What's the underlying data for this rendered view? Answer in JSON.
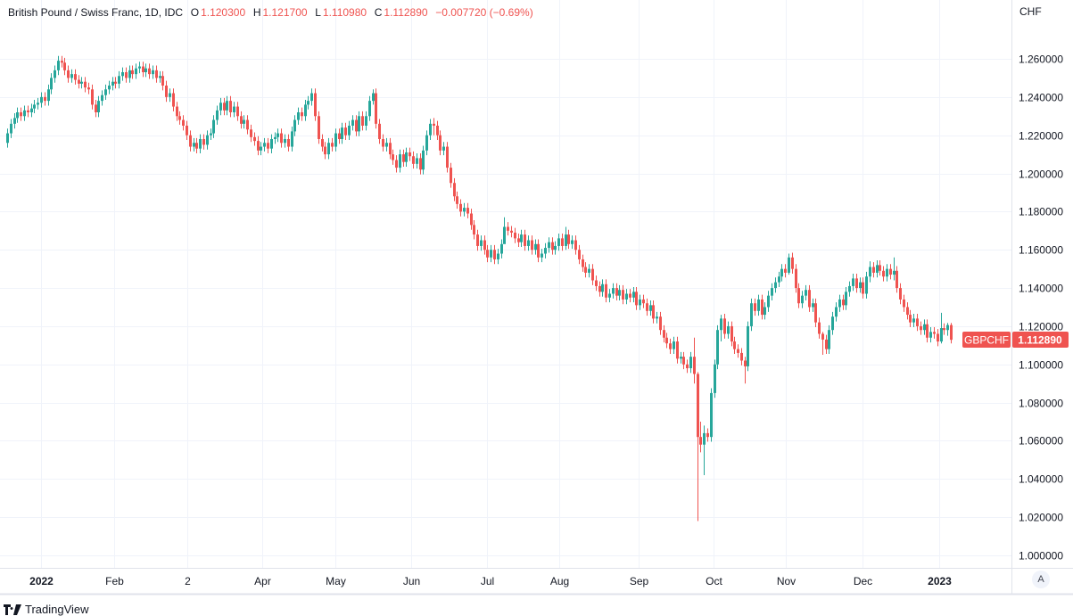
{
  "header": {
    "title": "British Pound / Swiss Franc, 1D, IDC",
    "o_label": "O",
    "o_value": "1.120300",
    "h_label": "H",
    "h_value": "1.121700",
    "l_label": "L",
    "l_value": "1.110980",
    "c_label": "C",
    "c_value": "1.112890",
    "change": "−0.007720 (−0.69%)"
  },
  "currency_label": "CHF",
  "auto_scale_button": "A",
  "logo_text": "TradingView",
  "colors": {
    "up": "#26a69a",
    "down": "#ef5350",
    "grid": "#f0f3fa",
    "axis_text": "#131722"
  },
  "chart_data": {
    "type": "candlestick",
    "symbol": "GBPCHF",
    "last_price_label": "1.112890",
    "ylim": [
      0.99,
      1.275
    ],
    "yticks": [
      "1.260000",
      "1.240000",
      "1.220000",
      "1.200000",
      "1.180000",
      "1.160000",
      "1.140000",
      "1.120000",
      "1.100000",
      "1.080000",
      "1.060000",
      "1.040000",
      "1.020000",
      "1.000000"
    ],
    "xticks": [
      "2022",
      "Feb",
      "2",
      "Apr",
      "May",
      "Jun",
      "Jul",
      "Aug",
      "Sep",
      "Oct",
      "Nov",
      "Dec",
      "2023"
    ],
    "first_open": 1.216,
    "closes_note": "daily closes; arrays are [close, high, low]",
    "closes": [
      1.221,
      1.226,
      1.229,
      1.232,
      1.23,
      1.233,
      1.232,
      1.234,
      1.236,
      1.237,
      1.24,
      1.238,
      1.244,
      1.25,
      1.254,
      1.259,
      1.258,
      1.254,
      1.25,
      1.252,
      1.249,
      1.247,
      1.248,
      1.245,
      1.244,
      1.236,
      1.232,
      1.238,
      1.241,
      1.244,
      1.246,
      1.248,
      1.247,
      1.251,
      1.253,
      1.25,
      1.254,
      1.252,
      1.255,
      1.256,
      1.253,
      1.255,
      1.252,
      1.254,
      1.25,
      1.251,
      1.246,
      1.24,
      1.242,
      1.235,
      1.23,
      1.228,
      1.225,
      1.22,
      1.214,
      1.216,
      1.213,
      1.218,
      1.215,
      1.22,
      1.221,
      1.228,
      1.233,
      1.237,
      1.233,
      1.238,
      1.232,
      1.235,
      1.23,
      1.226,
      1.228,
      1.223,
      1.219,
      1.217,
      1.212,
      1.214,
      1.216,
      1.213,
      1.218,
      1.219,
      1.221,
      1.216,
      1.218,
      1.214,
      1.222,
      1.228,
      1.232,
      1.23,
      1.236,
      1.238,
      1.242,
      1.23,
      1.218,
      1.214,
      1.21,
      1.216,
      1.214,
      1.221,
      1.218,
      1.224,
      1.22,
      1.225,
      1.228,
      1.222,
      1.23,
      1.225,
      1.23,
      1.238,
      [
        1.242,
        1.244,
        1.236
      ],
      1.226,
      1.218,
      1.214,
      1.216,
      1.21,
      1.207,
      1.203,
      1.21,
      1.206,
      1.211,
      1.209,
      1.205,
      1.208,
      1.202,
      1.212,
      1.22,
      1.226,
      [
        1.225,
        1.229,
        1.22
      ],
      1.22,
      1.212,
      1.214,
      1.203,
      1.195,
      1.188,
      1.184,
      1.18,
      1.182,
      1.179,
      1.173,
      1.168,
      1.162,
      1.165,
      1.16,
      1.156,
      1.16,
      1.155,
      1.158,
      1.163,
      [
        1.172,
        1.177,
        1.166
      ],
      1.17,
      1.169,
      1.166,
      1.164,
      1.168,
      1.162,
      1.165,
      1.16,
      1.163,
      1.156,
      1.158,
      1.161,
      1.164,
      1.16,
      1.162,
      1.166,
      1.162,
      [
        1.168,
        1.172,
        1.16
      ],
      1.163,
      1.165,
      1.16,
      1.155,
      1.151,
      1.148,
      1.15,
      1.144,
      1.141,
      1.138,
      1.142,
      1.135,
      1.137,
      1.14,
      1.136,
      1.139,
      1.134,
      1.137,
      1.135,
      1.138,
      1.131,
      1.134,
      1.132,
      1.128,
      1.131,
      1.124,
      1.125,
      1.118,
      1.114,
      1.111,
      1.108,
      1.112,
      1.103,
      1.104,
      1.1,
      1.098,
      1.104,
      [
        1.095,
        1.114,
        1.09
      ],
      [
        1.062,
        1.096,
        1.018
      ],
      [
        1.058,
        1.07,
        1.054
      ],
      [
        1.064,
        1.068,
        1.042
      ],
      1.062,
      1.085,
      1.1,
      1.118,
      [
        1.124,
        1.126,
        1.112
      ],
      1.116,
      1.12,
      1.112,
      1.108,
      1.106,
      1.102,
      [
        1.099,
        1.104,
        1.09
      ],
      1.12,
      1.132,
      1.128,
      1.134,
      1.126,
      1.13,
      1.136,
      1.14,
      1.143,
      1.146,
      1.15,
      1.148,
      [
        1.156,
        1.158,
        1.147
      ],
      1.15,
      1.14,
      1.132,
      1.136,
      1.139,
      1.13,
      1.132,
      1.122,
      1.116,
      [
        1.113,
        1.117,
        1.105
      ],
      1.108,
      1.118,
      1.125,
      1.13,
      1.134,
      1.131,
      1.138,
      1.141,
      1.145,
      1.14,
      1.143,
      1.137,
      1.146,
      [
        1.151,
        1.154,
        1.143
      ],
      1.148,
      1.152,
      1.149,
      1.146,
      1.15,
      1.147,
      [
        1.149,
        1.156,
        1.144
      ],
      1.14,
      1.134,
      1.13,
      1.126,
      1.122,
      1.124,
      1.12,
      1.118,
      1.121,
      1.114,
      1.117,
      1.116,
      1.112,
      [
        1.119,
        1.127,
        1.111
      ],
      1.118,
      [
        1.1206,
        1.1217,
        1.115
      ],
      [
        1.11289,
        1.1217,
        1.11098
      ]
    ]
  }
}
